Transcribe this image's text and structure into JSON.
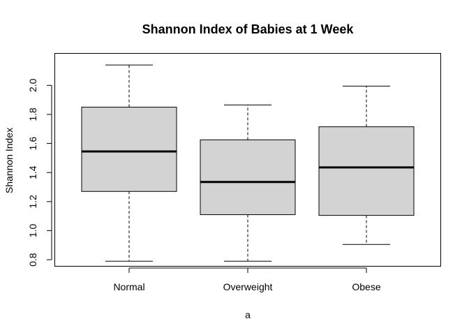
{
  "chart_data": {
    "type": "boxplot",
    "title": "Shannon Index of Babies at 1 Week",
    "xlabel": "a",
    "ylabel": "Shannon Index",
    "categories": [
      "Normal",
      "Overweight",
      "Obese"
    ],
    "boxes": [
      {
        "name": "Normal",
        "whisker_low": 0.79,
        "q1": 1.27,
        "median": 1.545,
        "q3": 1.85,
        "whisker_high": 2.14
      },
      {
        "name": "Overweight",
        "whisker_low": 0.79,
        "q1": 1.11,
        "median": 1.335,
        "q3": 1.625,
        "whisker_high": 1.865
      },
      {
        "name": "Obese",
        "whisker_low": 0.905,
        "q1": 1.105,
        "median": 1.435,
        "q3": 1.715,
        "whisker_high": 1.995
      }
    ],
    "ylim": [
      0.755,
      2.22
    ],
    "yticks": [
      "0.8",
      "1.0",
      "1.2",
      "1.4",
      "1.6",
      "1.8",
      "2.0"
    ],
    "ytick_values": [
      0.8,
      1.0,
      1.2,
      1.4,
      1.6,
      1.8,
      2.0
    ],
    "box_fill": "#d3d3d3",
    "line_color": "#000000",
    "grid": false,
    "legend": "none"
  }
}
